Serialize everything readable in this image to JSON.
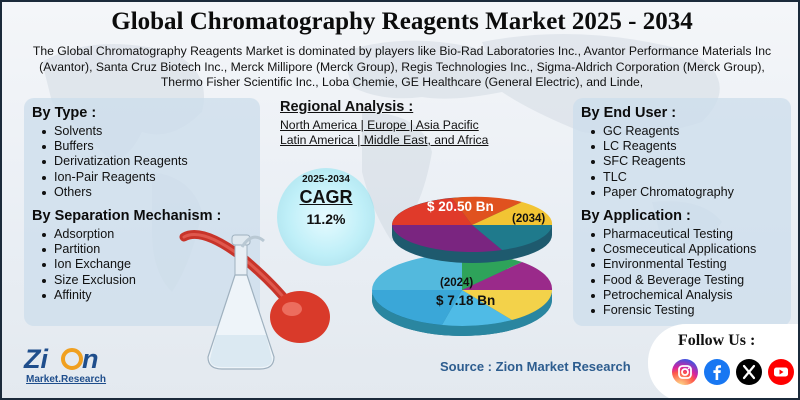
{
  "title": "Global Chromatography Reagents Market 2025 - 2034",
  "intro": "The Global Chromatography Reagents Market is dominated by players like Bio-Rad Laboratories Inc., Avantor Performance Materials Inc (Avantor), Santa Cruz Biotech Inc., Merck Millipore (Merck Group), Regis Technologies Inc., Sigma-Aldrich Corporation (Merck Group), Thermo Fisher Scientific Inc., Loba Chemie, GE Healthcare (General Electric), and Linde,",
  "by_type": {
    "heading": "By Type :",
    "items": [
      "Solvents",
      "Buffers",
      "Derivatization Reagents",
      "Ion-Pair Reagents",
      "Others"
    ]
  },
  "by_separation": {
    "heading": "By Separation Mechanism :",
    "items": [
      "Adsorption",
      "Partition",
      "Ion Exchange",
      "Size Exclusion",
      "Affinity"
    ]
  },
  "regional": {
    "heading": "Regional Analysis :",
    "line1": "North America | Europe | Asia Pacific",
    "line2": "Latin America | Middle East, and Africa"
  },
  "cagr": {
    "years": "2025-2034",
    "label": "CAGR",
    "value": "11.2%"
  },
  "pie": {
    "value_2034": "$ 20.50 Bn",
    "label_2034": "(2034)",
    "label_2024": "(2024)",
    "value_2024": "$ 7.18 Bn"
  },
  "by_end_user": {
    "heading": "By End User :",
    "items": [
      "GC Reagents",
      "LC Reagents",
      "SFC Reagents",
      "TLC",
      "Paper Chromatography"
    ]
  },
  "by_application": {
    "heading": "By Application :",
    "items": [
      "Pharmaceutical Testing",
      "Cosmeceutical Applications",
      "Environmental Testing",
      "Food & Beverage Testing",
      "Petrochemical Analysis",
      "Forensic Testing"
    ]
  },
  "source": "Source : Zion Market Research",
  "follow": "Follow Us :",
  "social_icons": [
    "instagram-icon",
    "facebook-icon",
    "x-icon",
    "youtube-icon"
  ],
  "logo": {
    "name": "Zion",
    "sub": "Market.Research"
  },
  "colors": {
    "title": "#0c0c0c",
    "source": "#2d5d8f",
    "panel": "#cddeec",
    "instagram": "#c13584",
    "facebook": "#1877f2",
    "x": "#000000",
    "youtube": "#ff0000"
  }
}
